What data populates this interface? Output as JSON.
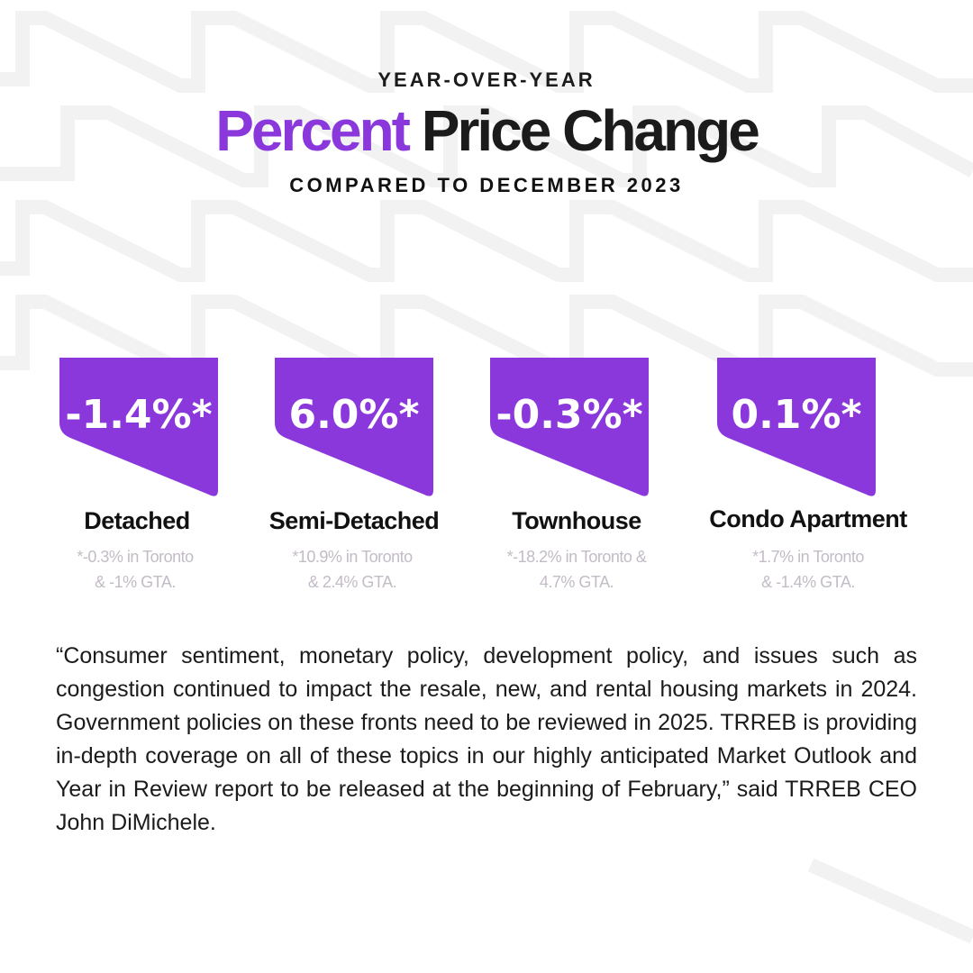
{
  "header": {
    "kicker": "YEAR-OVER-YEAR",
    "title_accent": "Percent",
    "title_rest": "Price Change",
    "subtitle": "COMPARED TO DECEMBER 2023"
  },
  "colors": {
    "accent": "#8a38dc",
    "text": "#1b1b1b",
    "note": "#c3bcc6"
  },
  "cards": [
    {
      "value": "-1.4%*",
      "label": "Detached",
      "note1": "*-0.3% in Toronto",
      "note2": "& -1% GTA."
    },
    {
      "value": "6.0%*",
      "label": "Semi-Detached",
      "note1": "*10.9% in Toronto",
      "note2": "& 2.4% GTA."
    },
    {
      "value": "-0.3%*",
      "label": "Townhouse",
      "note1": "*-18.2% in Toronto &",
      "note2": "4.7% GTA."
    },
    {
      "value": "0.1%*",
      "label": "Condo Apartment",
      "note1": "*1.7% in Toronto",
      "note2": "& -1.4% GTA."
    }
  ],
  "quote": "“Consumer sentiment, monetary policy, development policy, and issues such as congestion continued to impact the resale, new, and rental housing markets in 2024. Government policies on these fronts need to be reviewed in 2025. TRREB is providing in-depth coverage on all of these topics in our highly anticipated Market Outlook and Year in Review report to be released at the beginning of February,” said TRREB CEO John DiMichele."
}
